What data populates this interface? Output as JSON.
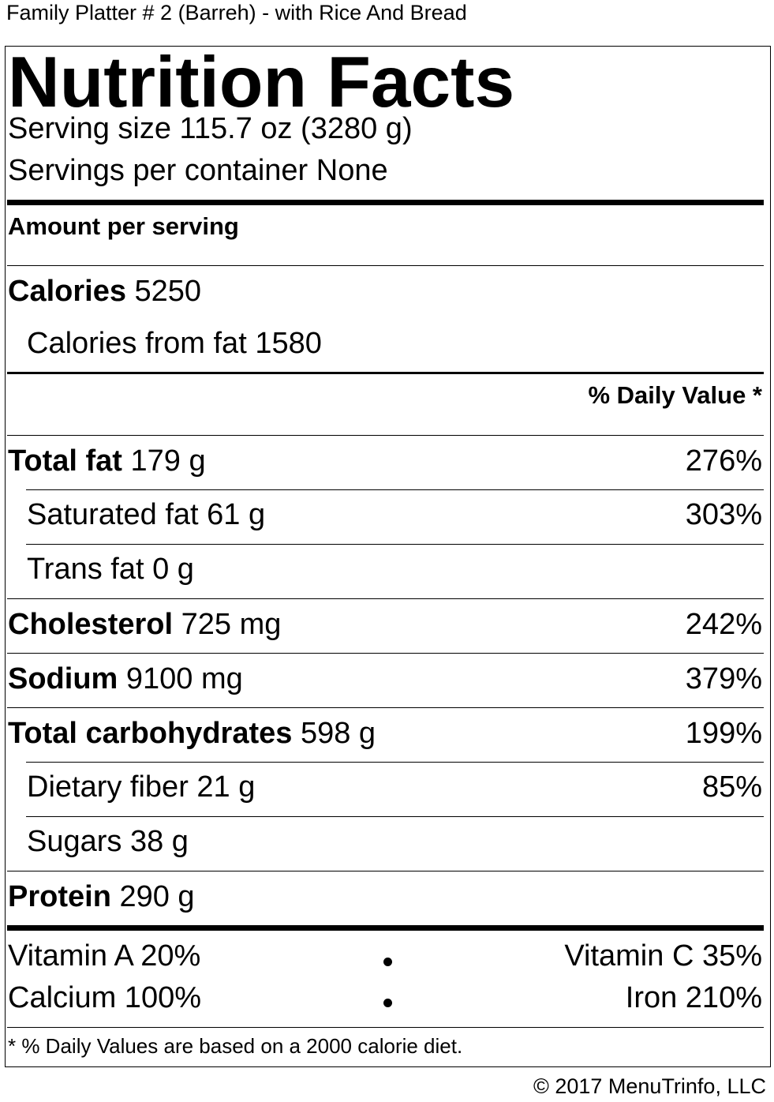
{
  "product": {
    "title": "Family Platter # 2 (Barreh) - with Rice And Bread"
  },
  "label": {
    "heading": "Nutrition Facts",
    "serving_size": "Serving size 115.7 oz (3280 g)",
    "servings_per_container": "Servings per container None",
    "amount_per_serving": "Amount per serving",
    "calories": {
      "label": "Calories",
      "value": "5250"
    },
    "calories_from_fat": {
      "label": "Calories from fat",
      "value": "1580"
    },
    "daily_value_header": "% Daily Value *",
    "nutrients": {
      "total_fat": {
        "label": "Total fat",
        "amount": "179 g",
        "dv": "276%"
      },
      "saturated_fat": {
        "label": "Saturated fat",
        "amount": "61 g",
        "dv": "303%"
      },
      "trans_fat": {
        "label": "Trans fat",
        "amount": "0 g",
        "dv": ""
      },
      "cholesterol": {
        "label": "Cholesterol",
        "amount": "725 mg",
        "dv": "242%"
      },
      "sodium": {
        "label": "Sodium",
        "amount": "9100 mg",
        "dv": "379%"
      },
      "total_carbohydrates": {
        "label": "Total carbohydrates",
        "amount": "598 g",
        "dv": "199%"
      },
      "dietary_fiber": {
        "label": "Dietary fiber",
        "amount": "21 g",
        "dv": "85%"
      },
      "sugars": {
        "label": "Sugars",
        "amount": "38 g",
        "dv": ""
      },
      "protein": {
        "label": "Protein",
        "amount": "290 g",
        "dv": ""
      }
    },
    "vitamins": {
      "vitamin_a": "Vitamin A 20%",
      "vitamin_c": "Vitamin C 35%",
      "calcium": "Calcium 100%",
      "iron": "Iron 210%"
    },
    "footnote": "* % Daily Values are based on a 2000 calorie diet."
  },
  "copyright": "© 2017 MenuTrinfo, LLC"
}
